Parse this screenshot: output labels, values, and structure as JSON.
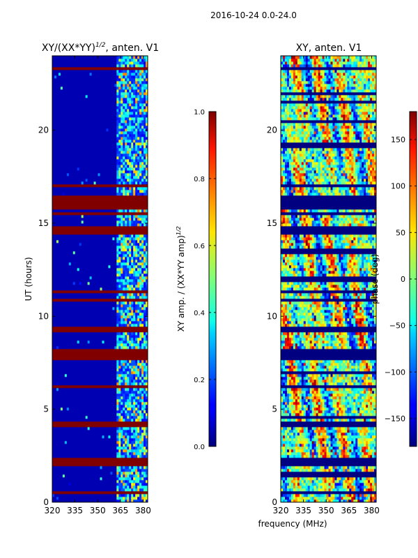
{
  "figure": {
    "suptitle": "2016-10-24 0.0-24.0",
    "xlabel_shared": "frequency (MHz)"
  },
  "chart_data": [
    {
      "type": "heatmap",
      "title": "XY/(XX*YY)",
      "title_exponent": "1/2",
      "title_suffix": ", anten. V1",
      "xlabel": "",
      "ylabel": "UT (hours)",
      "xlim": [
        320,
        383
      ],
      "ylim": [
        0,
        24
      ],
      "x_ticks": [
        320,
        335,
        350,
        365,
        380
      ],
      "y_ticks": [
        0,
        5,
        10,
        15,
        20
      ],
      "colormap": "jet",
      "colorbar": {
        "label": "XY amp. / (XX*YY amp)",
        "label_exponent": "1/2",
        "range": [
          0.0,
          1.0
        ],
        "ticks": [
          "0.0",
          "0.2",
          "0.4",
          "0.6",
          "0.8",
          "1.0"
        ]
      },
      "features": {
        "background_value": 0.05,
        "high_freq_region_start_mhz": 362,
        "flagged_rows_ut": [
          0.5,
          2.1,
          2.3,
          4.2,
          6.2,
          7.7,
          7.9,
          8.1,
          9.3,
          10.9,
          11.3,
          14.5,
          14.7,
          15.5,
          15.9,
          16.2,
          16.4,
          17.0,
          23.3
        ]
      }
    },
    {
      "type": "heatmap",
      "title": "XY, anten. V1",
      "xlabel": "",
      "ylabel": "",
      "xlim": [
        320,
        383
      ],
      "ylim": [
        0,
        24
      ],
      "x_ticks": [
        320,
        335,
        350,
        365,
        380
      ],
      "y_ticks": [
        0,
        5,
        10,
        15,
        20
      ],
      "colormap": "jet",
      "colorbar": {
        "label": "phase (deg)",
        "range": [
          -180,
          180
        ],
        "ticks": [
          "−150",
          "−100",
          "−50",
          "0",
          "50",
          "100",
          "150"
        ],
        "tick_values": [
          -150,
          -100,
          -50,
          0,
          50,
          100,
          150
        ]
      },
      "features": {
        "flagged_rows_ut": [
          0.5,
          1.5,
          2.1,
          2.3,
          4.2,
          4.6,
          6.2,
          7.0,
          7.7,
          7.9,
          8.1,
          9.3,
          10.9,
          11.3,
          12.0,
          13.5,
          14.5,
          14.7,
          15.5,
          15.9,
          16.2,
          16.4,
          17.0,
          19.2,
          20.5,
          21.5,
          22.0,
          23.3
        ]
      }
    }
  ]
}
